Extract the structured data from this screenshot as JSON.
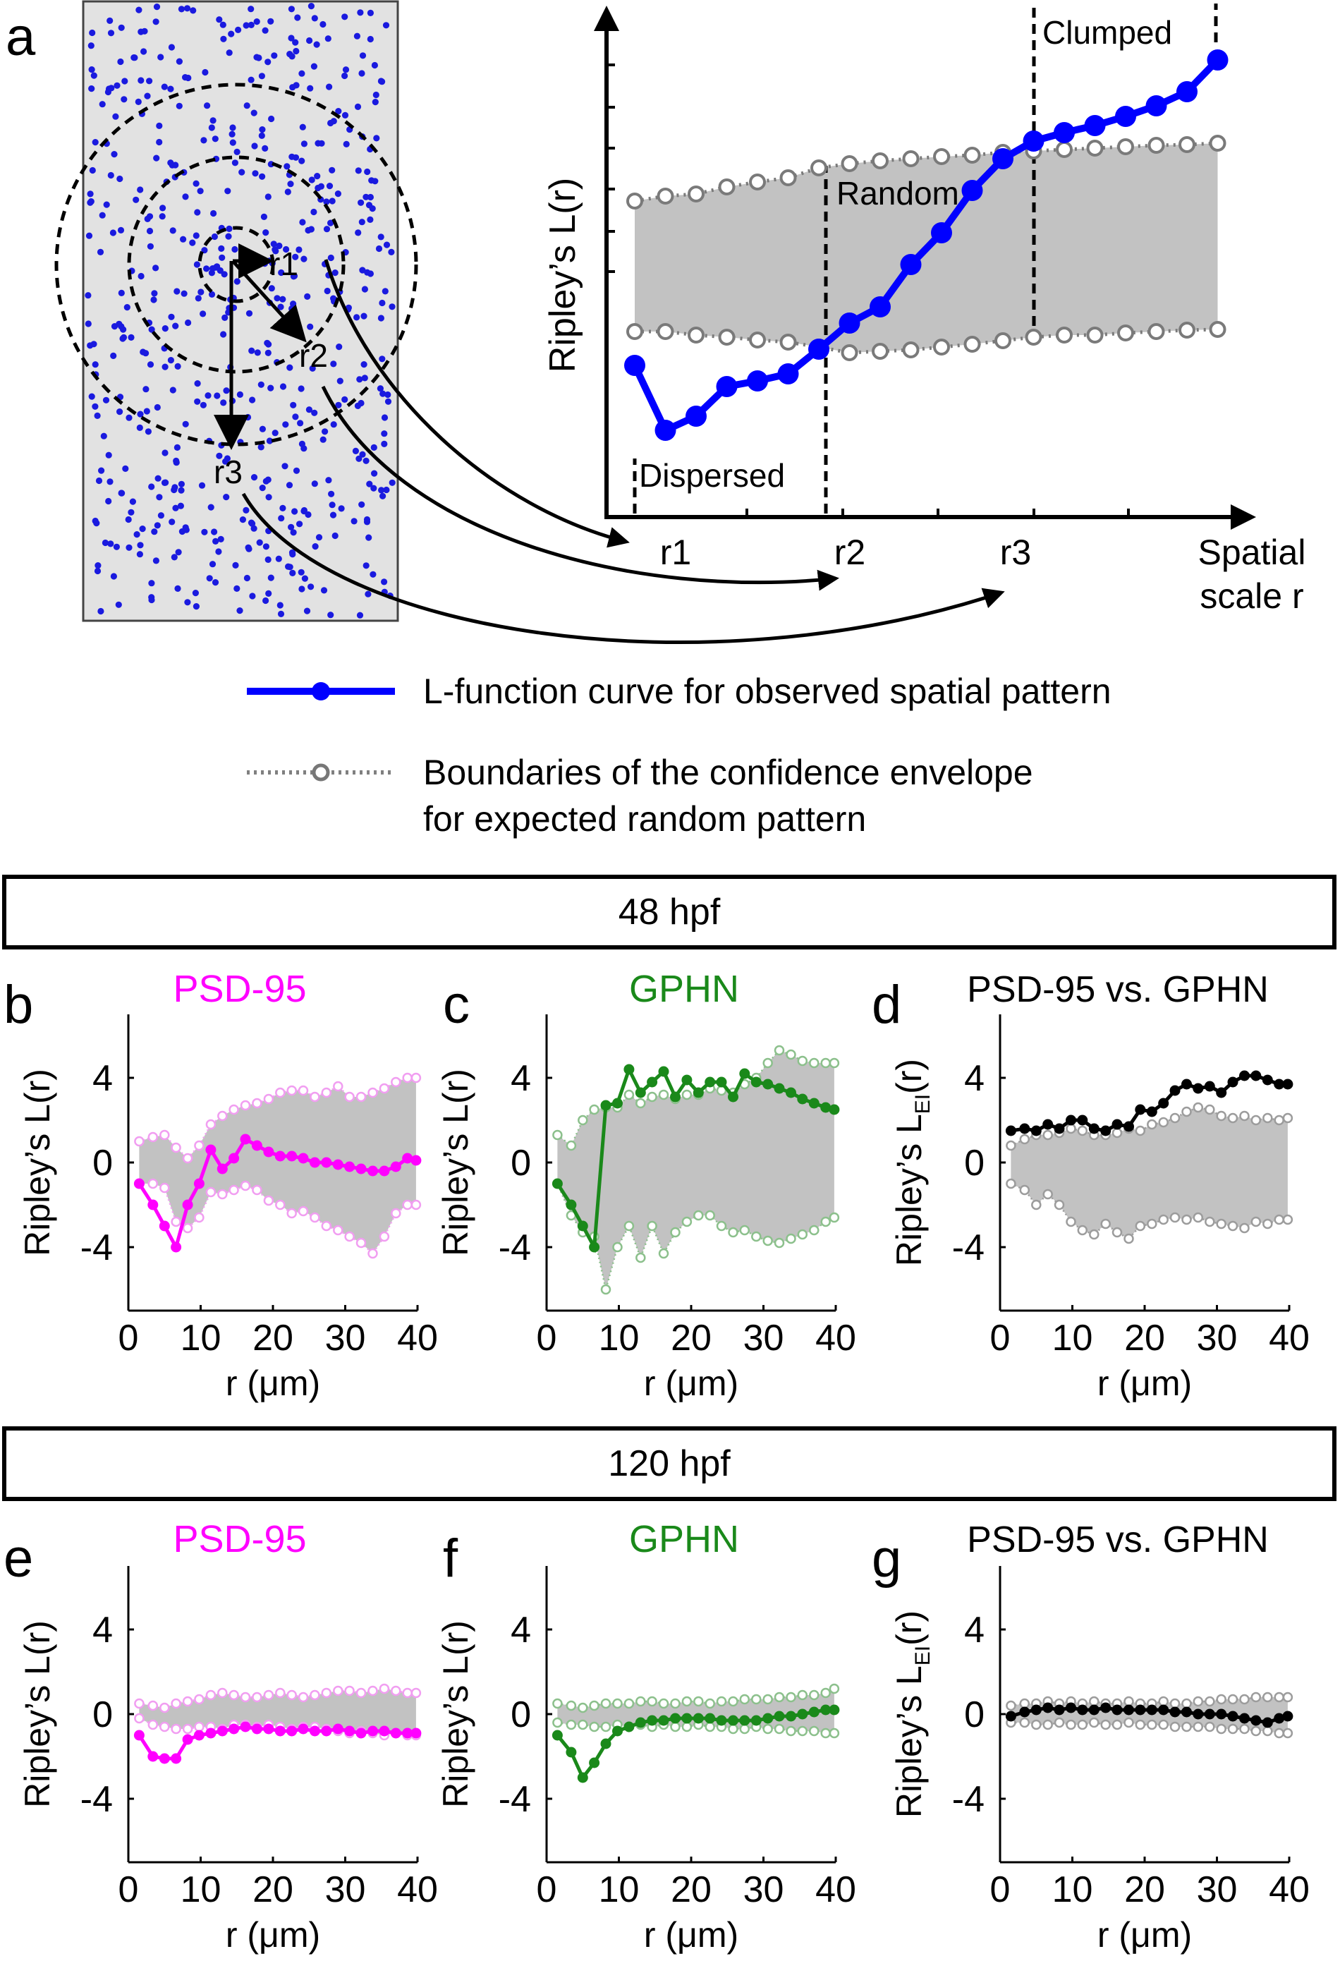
{
  "panel_letters": {
    "a": "a",
    "b": "b",
    "c": "c",
    "d": "d",
    "e": "e",
    "f": "f",
    "g": "g"
  },
  "section_headers": {
    "h48": "48 hpf",
    "h120": "120 hpf"
  },
  "schematic": {
    "radius_labels": [
      "r1",
      "r2",
      "r3"
    ],
    "ylabel": "Ripley’s L(r)",
    "xlabel_line1": "Spatial",
    "xlabel_line2": "scale r",
    "x_ticks": [
      "r1",
      "r2",
      "r3"
    ],
    "regions": {
      "clumped": "Clumped",
      "random": "Random",
      "dispersed": "Dispersed"
    },
    "legend": {
      "observed": "L-function curve for observed spatial pattern",
      "envelope_line1": "Boundaries of the confidence envelope",
      "envelope_line2": "for expected random pattern"
    },
    "colors": {
      "observed": "#0000ff",
      "envelope": "#bbbbbb",
      "points": "#1a1adf",
      "field": "#e2e2e2"
    }
  },
  "chart_data": [
    {
      "type": "line",
      "panel": "b",
      "title": "PSD-95",
      "color": "#ff00ff",
      "env_color": "#f19ef1",
      "xlabel": "r (μm)",
      "ylabel_main": "Ripley’s L(r)",
      "ylabel_sub": "",
      "xlim": [
        0,
        40
      ],
      "ylim": [
        -7,
        7
      ],
      "x_ticks": [
        "0",
        "10",
        "20",
        "30",
        "40"
      ],
      "y_ticks": [
        "4",
        "0",
        "-4"
      ],
      "x": [
        1.5,
        3.4,
        5,
        6.6,
        8.2,
        9.8,
        11.4,
        13,
        14.6,
        16.2,
        17.8,
        19.4,
        21,
        22.6,
        24.2,
        25.8,
        27.4,
        29,
        30.6,
        32.2,
        33.8,
        35.4,
        37,
        38.6,
        39.8
      ],
      "series": [
        {
          "name": "observed",
          "values": [
            -1.0,
            -2.0,
            -3.0,
            -4.0,
            -2.0,
            -1.0,
            0.6,
            -0.3,
            0.2,
            1.1,
            0.8,
            0.5,
            0.3,
            0.3,
            0.2,
            0.0,
            0.0,
            -0.1,
            -0.2,
            -0.3,
            -0.4,
            -0.4,
            -0.2,
            0.2,
            0.1
          ]
        },
        {
          "name": "upper",
          "values": [
            1.0,
            1.2,
            1.3,
            0.7,
            0.2,
            0.8,
            1.8,
            2.2,
            2.5,
            2.7,
            2.8,
            3.0,
            3.3,
            3.4,
            3.4,
            3.1,
            3.3,
            3.6,
            3.1,
            3.1,
            3.3,
            3.5,
            3.8,
            4.0,
            4.0
          ]
        },
        {
          "name": "lower",
          "values": [
            -1.0,
            -1.0,
            -1.2,
            -2.8,
            -3.1,
            -2.6,
            -1.4,
            -1.5,
            -1.3,
            -1.1,
            -1.3,
            -1.8,
            -2.0,
            -2.4,
            -2.3,
            -2.6,
            -3.0,
            -3.2,
            -3.5,
            -3.8,
            -4.3,
            -3.5,
            -2.4,
            -2.0,
            -2.0
          ]
        }
      ]
    },
    {
      "type": "line",
      "panel": "c",
      "title": "GPHN",
      "color": "#1a891a",
      "env_color": "#8cc08c",
      "xlabel": "r (μm)",
      "ylabel_main": "Ripley’s L(r)",
      "ylabel_sub": "",
      "xlim": [
        0,
        40
      ],
      "ylim": [
        -7,
        7
      ],
      "x_ticks": [
        "0",
        "10",
        "20",
        "30",
        "40"
      ],
      "y_ticks": [
        "4",
        "0",
        "-4"
      ],
      "x": [
        1.5,
        3.4,
        5,
        6.6,
        8.2,
        9.8,
        11.4,
        13,
        14.6,
        16.2,
        17.8,
        19.4,
        21,
        22.6,
        24.2,
        25.8,
        27.4,
        29,
        30.6,
        32.2,
        33.8,
        35.4,
        37,
        38.6,
        39.8
      ],
      "series": [
        {
          "name": "observed",
          "values": [
            -1.0,
            -2.0,
            -3.0,
            -4.0,
            2.7,
            2.8,
            4.4,
            3.3,
            3.8,
            4.3,
            3.1,
            3.9,
            3.3,
            3.8,
            3.8,
            3.1,
            4.2,
            3.8,
            3.7,
            3.5,
            3.3,
            3.0,
            2.8,
            2.6,
            2.5
          ]
        },
        {
          "name": "upper",
          "values": [
            1.3,
            0.8,
            2.0,
            2.5,
            2.6,
            2.6,
            3.2,
            2.8,
            3.1,
            3.2,
            3.0,
            3.2,
            3.2,
            3.5,
            3.4,
            3.3,
            3.7,
            4.0,
            4.7,
            5.3,
            5.1,
            4.8,
            4.7,
            4.7,
            4.7
          ]
        },
        {
          "name": "lower",
          "values": [
            -1.0,
            -2.5,
            -3.3,
            -3.5,
            -6.0,
            -4.0,
            -3.0,
            -4.5,
            -3.0,
            -4.3,
            -3.3,
            -2.8,
            -2.5,
            -2.5,
            -3.0,
            -3.3,
            -3.2,
            -3.5,
            -3.7,
            -3.8,
            -3.6,
            -3.4,
            -3.2,
            -2.8,
            -2.6
          ]
        }
      ]
    },
    {
      "type": "line",
      "panel": "d",
      "title": "PSD-95 vs. GPHN",
      "color": "#000000",
      "env_color": "#9c9c9c",
      "xlabel": "r (μm)",
      "ylabel_main": "Ripley’s L",
      "ylabel_sub": "EI",
      "ylabel_tail": "(r)",
      "xlim": [
        0,
        40
      ],
      "ylim": [
        -7,
        7
      ],
      "x_ticks": [
        "0",
        "10",
        "20",
        "30",
        "40"
      ],
      "y_ticks": [
        "4",
        "0",
        "-4"
      ],
      "x": [
        1.5,
        3.4,
        5,
        6.6,
        8.2,
        9.8,
        11.4,
        13,
        14.6,
        16.2,
        17.8,
        19.4,
        21,
        22.6,
        24.2,
        25.8,
        27.4,
        29,
        30.6,
        32.2,
        33.8,
        35.4,
        37,
        38.6,
        39.8
      ],
      "series": [
        {
          "name": "observed",
          "values": [
            1.5,
            1.6,
            1.5,
            1.8,
            1.6,
            2.0,
            2.0,
            1.6,
            1.5,
            1.8,
            1.7,
            2.5,
            2.4,
            2.8,
            3.4,
            3.7,
            3.5,
            3.6,
            3.3,
            3.8,
            4.1,
            4.1,
            3.9,
            3.7,
            3.7
          ]
        },
        {
          "name": "upper",
          "values": [
            0.8,
            1.1,
            1.3,
            1.3,
            1.4,
            1.6,
            1.5,
            1.3,
            1.3,
            1.4,
            1.6,
            1.5,
            1.8,
            1.9,
            2.1,
            2.4,
            2.6,
            2.5,
            2.2,
            2.1,
            2.2,
            2.0,
            2.1,
            2.0,
            2.1
          ]
        },
        {
          "name": "lower",
          "values": [
            -1.0,
            -1.3,
            -2.0,
            -1.5,
            -2.0,
            -2.8,
            -3.2,
            -3.4,
            -2.9,
            -3.3,
            -3.6,
            -3.0,
            -2.9,
            -2.7,
            -2.6,
            -2.7,
            -2.6,
            -2.8,
            -2.9,
            -3.0,
            -3.1,
            -2.8,
            -2.9,
            -2.7,
            -2.7
          ]
        }
      ]
    },
    {
      "type": "line",
      "panel": "e",
      "title": "PSD-95",
      "color": "#ff00ff",
      "env_color": "#f19ef1",
      "xlabel": "r (μm)",
      "ylabel_main": "Ripley’s L(r)",
      "ylabel_sub": "",
      "xlim": [
        0,
        40
      ],
      "ylim": [
        -7,
        7
      ],
      "x_ticks": [
        "0",
        "10",
        "20",
        "30",
        "40"
      ],
      "y_ticks": [
        "4",
        "0",
        "-4"
      ],
      "x": [
        1.5,
        3.4,
        5,
        6.6,
        8.2,
        9.8,
        11.4,
        13,
        14.6,
        16.2,
        17.8,
        19.4,
        21,
        22.6,
        24.2,
        25.8,
        27.4,
        29,
        30.6,
        32.2,
        33.8,
        35.4,
        37,
        38.6,
        39.8
      ],
      "series": [
        {
          "name": "observed",
          "values": [
            -1.0,
            -2.0,
            -2.1,
            -2.1,
            -1.2,
            -1.0,
            -0.9,
            -0.8,
            -0.7,
            -0.6,
            -0.7,
            -0.7,
            -0.8,
            -0.8,
            -0.7,
            -0.8,
            -0.8,
            -0.7,
            -0.8,
            -0.9,
            -0.8,
            -0.8,
            -0.9,
            -0.9,
            -0.9
          ]
        },
        {
          "name": "upper",
          "values": [
            0.5,
            0.4,
            0.3,
            0.5,
            0.6,
            0.7,
            0.9,
            1.0,
            0.9,
            0.8,
            0.8,
            0.9,
            1.0,
            0.9,
            0.8,
            0.9,
            1.0,
            1.1,
            1.1,
            1.0,
            1.1,
            1.2,
            1.1,
            1.0,
            1.0
          ]
        },
        {
          "name": "lower",
          "values": [
            -0.2,
            -0.5,
            -0.6,
            -0.7,
            -0.7,
            -0.6,
            -0.6,
            -0.7,
            -0.5,
            -0.5,
            -0.6,
            -0.5,
            -0.6,
            -0.7,
            -0.6,
            -0.6,
            -0.7,
            -0.8,
            -0.9,
            -0.8,
            -0.9,
            -1.0,
            -0.9,
            -1.0,
            -1.0
          ]
        }
      ]
    },
    {
      "type": "line",
      "panel": "f",
      "title": "GPHN",
      "color": "#1a891a",
      "env_color": "#8cc08c",
      "xlabel": "r (μm)",
      "ylabel_main": "Ripley’s L(r)",
      "ylabel_sub": "",
      "xlim": [
        0,
        40
      ],
      "ylim": [
        -7,
        7
      ],
      "x_ticks": [
        "0",
        "10",
        "20",
        "30",
        "40"
      ],
      "y_ticks": [
        "4",
        "0",
        "-4"
      ],
      "x": [
        1.5,
        3.4,
        5,
        6.6,
        8.2,
        9.8,
        11.4,
        13,
        14.6,
        16.2,
        17.8,
        19.4,
        21,
        22.6,
        24.2,
        25.8,
        27.4,
        29,
        30.6,
        32.2,
        33.8,
        35.4,
        37,
        38.6,
        39.8
      ],
      "series": [
        {
          "name": "observed",
          "values": [
            -1.0,
            -1.8,
            -3.0,
            -2.3,
            -1.4,
            -0.8,
            -0.6,
            -0.4,
            -0.3,
            -0.3,
            -0.2,
            -0.2,
            -0.2,
            -0.2,
            -0.3,
            -0.3,
            -0.3,
            -0.3,
            -0.2,
            -0.1,
            -0.1,
            0.0,
            0.1,
            0.2,
            0.2
          ]
        },
        {
          "name": "upper",
          "values": [
            0.5,
            0.4,
            0.3,
            0.4,
            0.5,
            0.5,
            0.5,
            0.6,
            0.6,
            0.5,
            0.5,
            0.6,
            0.6,
            0.5,
            0.6,
            0.6,
            0.7,
            0.7,
            0.7,
            0.8,
            0.8,
            0.9,
            0.9,
            1.0,
            1.2
          ]
        },
        {
          "name": "lower",
          "values": [
            -0.4,
            -0.5,
            -0.5,
            -0.6,
            -0.6,
            -0.5,
            -0.6,
            -0.5,
            -0.6,
            -0.5,
            -0.6,
            -0.6,
            -0.5,
            -0.6,
            -0.6,
            -0.7,
            -0.7,
            -0.6,
            -0.7,
            -0.7,
            -0.8,
            -0.8,
            -0.8,
            -0.9,
            -0.9
          ]
        }
      ]
    },
    {
      "type": "line",
      "panel": "g",
      "title": "PSD-95 vs. GPHN",
      "color": "#000000",
      "env_color": "#9c9c9c",
      "xlabel": "r (μm)",
      "ylabel_main": "Ripley’s L",
      "ylabel_sub": "EI",
      "ylabel_tail": "(r)",
      "xlim": [
        0,
        40
      ],
      "ylim": [
        -7,
        7
      ],
      "x_ticks": [
        "0",
        "10",
        "20",
        "30",
        "40"
      ],
      "y_ticks": [
        "4",
        "0",
        "-4"
      ],
      "x": [
        1.5,
        3.4,
        5,
        6.6,
        8.2,
        9.8,
        11.4,
        13,
        14.6,
        16.2,
        17.8,
        19.4,
        21,
        22.6,
        24.2,
        25.8,
        27.4,
        29,
        30.6,
        32.2,
        33.8,
        35.4,
        37,
        38.6,
        39.8
      ],
      "series": [
        {
          "name": "observed",
          "values": [
            -0.1,
            0.1,
            0.2,
            0.3,
            0.2,
            0.3,
            0.2,
            0.2,
            0.3,
            0.2,
            0.2,
            0.2,
            0.2,
            0.2,
            0.1,
            0.1,
            0.0,
            0.0,
            0.0,
            -0.1,
            -0.2,
            -0.3,
            -0.4,
            -0.2,
            -0.1
          ]
        },
        {
          "name": "upper",
          "values": [
            0.4,
            0.5,
            0.5,
            0.6,
            0.5,
            0.6,
            0.5,
            0.6,
            0.5,
            0.5,
            0.6,
            0.5,
            0.5,
            0.6,
            0.5,
            0.5,
            0.6,
            0.6,
            0.7,
            0.7,
            0.7,
            0.8,
            0.8,
            0.8,
            0.8
          ]
        },
        {
          "name": "lower",
          "values": [
            -0.4,
            -0.4,
            -0.5,
            -0.5,
            -0.4,
            -0.5,
            -0.5,
            -0.4,
            -0.5,
            -0.5,
            -0.4,
            -0.5,
            -0.5,
            -0.5,
            -0.6,
            -0.6,
            -0.6,
            -0.6,
            -0.7,
            -0.7,
            -0.7,
            -0.8,
            -0.8,
            -0.9,
            -0.9
          ]
        }
      ]
    }
  ]
}
